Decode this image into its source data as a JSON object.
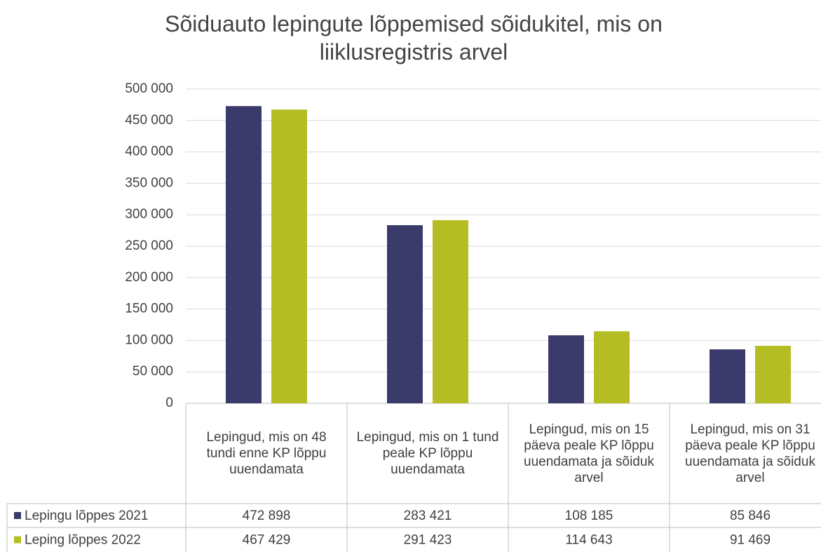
{
  "chart_data": {
    "type": "bar",
    "title": "Sõiduauto lepingute lõppemised sõidukitel, mis on liiklusregistris arvel",
    "categories": [
      "Lepingud, mis on 48 tundi enne KP lõppu uuendamata",
      "Lepingud, mis on 1 tund peale KP lõppu uuendamata",
      "Lepingud, mis on 15 päeva peale KP lõppu uuendamata ja sõiduk arvel",
      "Lepingud, mis on 31 päeva peale KP lõppu uuendamata ja sõiduk arvel"
    ],
    "series": [
      {
        "name": "Lepingu lõppes 2021",
        "color": "#3a3a6b",
        "values": [
          472898,
          283421,
          108185,
          85846
        ],
        "value_labels": [
          "472 898",
          "283 421",
          "108 185",
          "85 846"
        ]
      },
      {
        "name": "Leping lõppes 2022",
        "color": "#b5bd24",
        "values": [
          467429,
          291423,
          114643,
          91469
        ],
        "value_labels": [
          "467 429",
          "291 423",
          "114 643",
          "91 469"
        ]
      }
    ],
    "ylim": [
      0,
      500000
    ],
    "yticks": [
      0,
      {
        "value": 50000,
        "label": "50 000"
      },
      {
        "value": 100000,
        "label": "100 000"
      },
      {
        "value": 150000,
        "label": "150 000"
      },
      {
        "value": 200000,
        "label": "200 000"
      },
      {
        "value": 250000,
        "label": "250 000"
      },
      {
        "value": 300000,
        "label": "300 000"
      },
      {
        "value": 350000,
        "label": "350 000"
      },
      {
        "value": 400000,
        "label": "400 000"
      },
      {
        "value": 450000,
        "label": "450 000"
      },
      {
        "value": 500000,
        "label": "500 000"
      }
    ],
    "grid": true
  }
}
